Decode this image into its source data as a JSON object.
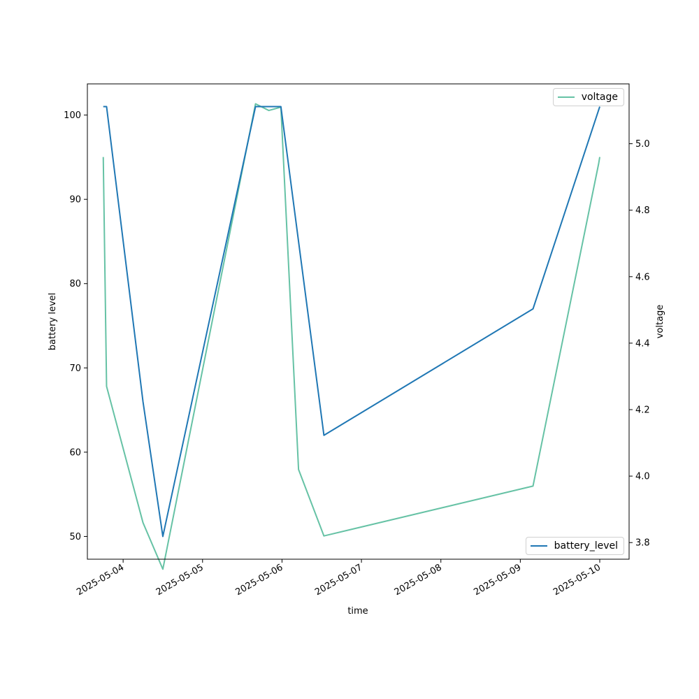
{
  "chart_data": {
    "type": "line",
    "xlabel": "time",
    "ylabel_left": "battery level",
    "ylabel_right": "voltage",
    "x_ticks": [
      "2025-05-04",
      "2025-05-05",
      "2025-05-06",
      "2025-05-07",
      "2025-05-08",
      "2025-05-09",
      "2025-05-10"
    ],
    "ylim_left": [
      47.3,
      103.7
    ],
    "yticks_left": [
      50,
      60,
      70,
      80,
      90,
      100
    ],
    "ylim_right": [
      3.75,
      5.18
    ],
    "yticks_right": [
      3.8,
      4.0,
      4.2,
      4.4,
      4.6,
      4.8,
      5.0
    ],
    "x_range": [
      "2025-05-03T13:12",
      "2025-05-10T08:52"
    ],
    "series": [
      {
        "name": "battery_level",
        "axis": "left",
        "color": "#1f77b4",
        "legend_position": "lower-right",
        "points": [
          {
            "x": "2025-05-03T18:00",
            "y": 101
          },
          {
            "x": "2025-05-03T19:00",
            "y": 101
          },
          {
            "x": "2025-05-04T06:00",
            "y": 66
          },
          {
            "x": "2025-05-04T12:00",
            "y": 50
          },
          {
            "x": "2025-05-05T16:00",
            "y": 101
          },
          {
            "x": "2025-05-05T23:40",
            "y": 101
          },
          {
            "x": "2025-05-06T12:40",
            "y": 62
          },
          {
            "x": "2025-05-09T03:50",
            "y": 77
          },
          {
            "x": "2025-05-10T00:00",
            "y": 101
          }
        ]
      },
      {
        "name": "voltage",
        "axis": "right",
        "color": "#66c2a5",
        "legend_position": "upper-right",
        "points": [
          {
            "x": "2025-05-03T18:00",
            "y": 4.96
          },
          {
            "x": "2025-05-03T19:00",
            "y": 4.27
          },
          {
            "x": "2025-05-04T06:00",
            "y": 3.86
          },
          {
            "x": "2025-05-04T12:00",
            "y": 3.72
          },
          {
            "x": "2025-05-05T16:00",
            "y": 5.12
          },
          {
            "x": "2025-05-05T20:00",
            "y": 5.1
          },
          {
            "x": "2025-05-05T23:40",
            "y": 5.11
          },
          {
            "x": "2025-05-06T05:00",
            "y": 4.02
          },
          {
            "x": "2025-05-06T12:40",
            "y": 3.82
          },
          {
            "x": "2025-05-09T03:50",
            "y": 3.97
          },
          {
            "x": "2025-05-09T23:40",
            "y": 4.94
          },
          {
            "x": "2025-05-10T00:00",
            "y": 4.96
          }
        ]
      }
    ]
  }
}
